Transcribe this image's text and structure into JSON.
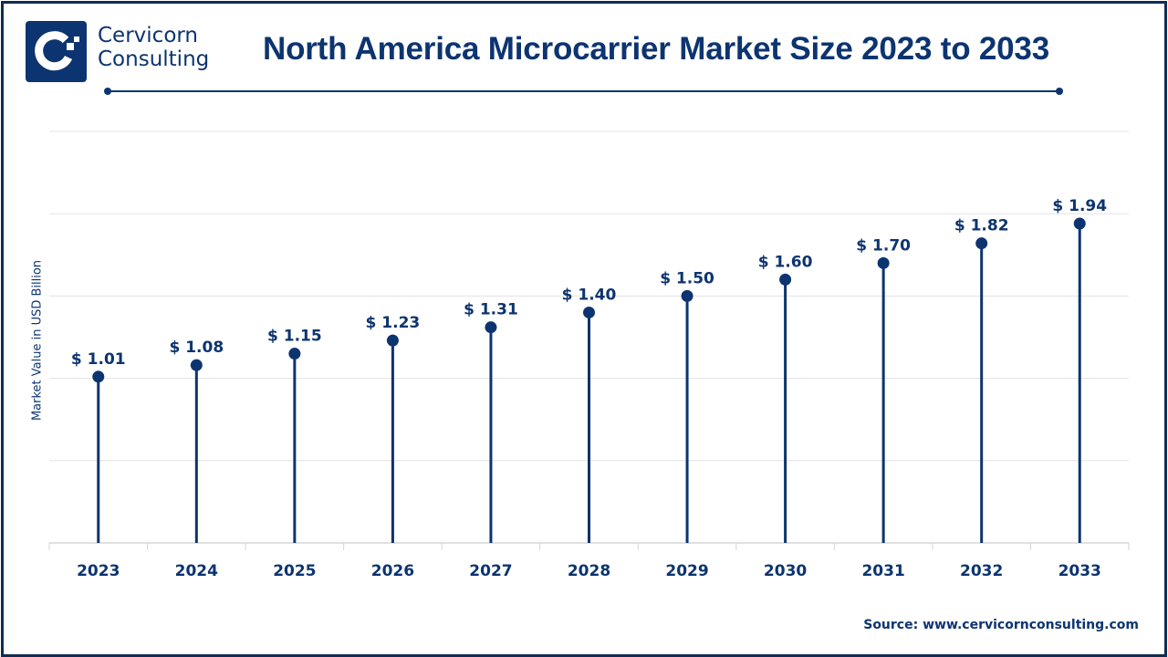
{
  "brand": {
    "logo_icon": "cervicorn-logo-icon",
    "line1": "Cervicorn",
    "line2": "Consulting"
  },
  "header": {
    "title": "North America Microcarrier Market Size 2023 to 2033"
  },
  "footer": {
    "source": "Source: www.cervicornconsulting.com"
  },
  "colors": {
    "primary": "#0c3470",
    "frame": "#0f2d52",
    "grid": "#e3e3e3"
  },
  "chart_data": {
    "type": "lollipop",
    "title": "North America Microcarrier Market Size 2023 to 2033",
    "xlabel": "",
    "ylabel": "Market Value in USD Billion",
    "categories": [
      "2023",
      "2024",
      "2025",
      "2026",
      "2027",
      "2028",
      "2029",
      "2030",
      "2031",
      "2032",
      "2033"
    ],
    "values": [
      1.01,
      1.08,
      1.15,
      1.23,
      1.31,
      1.4,
      1.5,
      1.6,
      1.7,
      1.82,
      1.94
    ],
    "value_labels": [
      "$ 1.01",
      "$ 1.08",
      "$ 1.15",
      "$ 1.23",
      "$ 1.31",
      "$ 1.40",
      "$ 1.50",
      "$ 1.60",
      "$ 1.70",
      "$ 1.82",
      "$ 1.94"
    ],
    "value_prefix": "$ ",
    "ylim": [
      0,
      2.5
    ],
    "ytick_step": 0.5,
    "y_tick_labels_shown": false,
    "grid": true,
    "legend": "none"
  }
}
